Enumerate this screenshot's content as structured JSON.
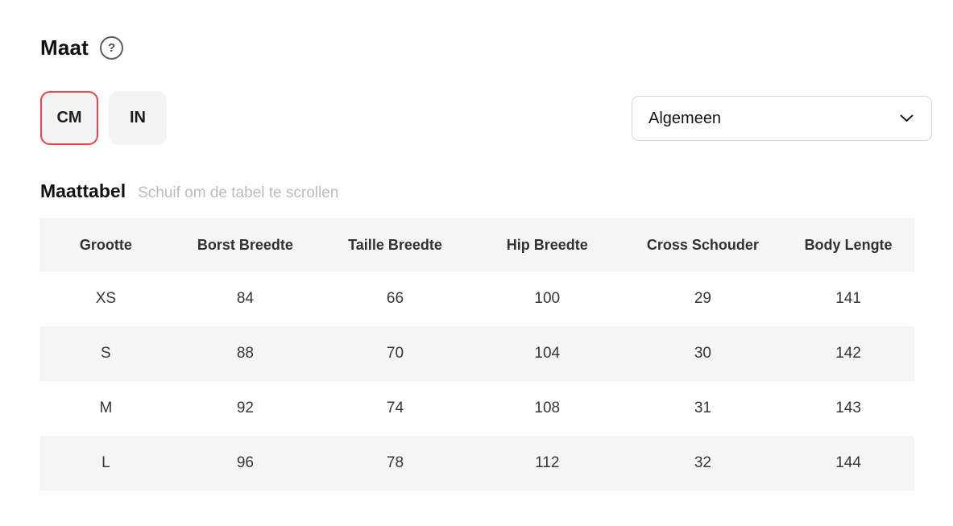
{
  "header": {
    "title": "Maat",
    "help_icon": "?"
  },
  "unit_toggle": {
    "options": [
      {
        "label": "CM",
        "selected": true
      },
      {
        "label": "IN",
        "selected": false
      }
    ]
  },
  "category_dropdown": {
    "value": "Algemeen"
  },
  "table_section": {
    "heading": "Maattabel",
    "hint": "Schuif om de tabel te scrollen"
  },
  "size_table": {
    "columns": [
      "Grootte",
      "Borst Breedte",
      "Taille Breedte",
      "Hip Breedte",
      "Cross Schouder",
      "Body Lengte"
    ],
    "rows": [
      [
        "XS",
        "84",
        "66",
        "100",
        "29",
        "141"
      ],
      [
        "S",
        "88",
        "70",
        "104",
        "30",
        "142"
      ],
      [
        "M",
        "92",
        "74",
        "108",
        "31",
        "143"
      ],
      [
        "L",
        "96",
        "78",
        "112",
        "32",
        "144"
      ]
    ]
  },
  "colors": {
    "accent_red": "#ec4345",
    "button_bg": "#f4f4f4",
    "stripe_bg": "#f5f5f6"
  }
}
